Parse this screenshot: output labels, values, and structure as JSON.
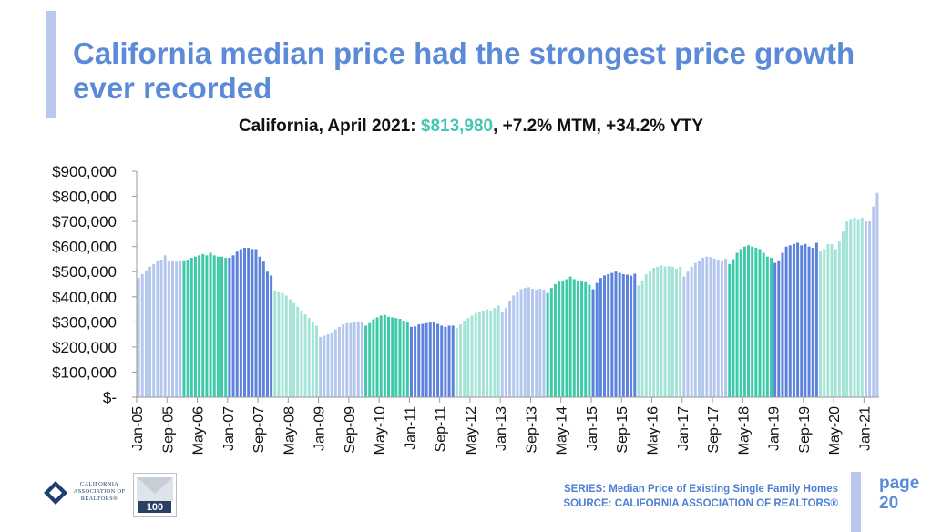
{
  "title": "California median price had the strongest price growth ever recorded",
  "subtitle": {
    "prefix": "California, April 2021: ",
    "value": "$813,980",
    "suffix": ", +7.2% MTM, +34.2% YTY"
  },
  "footer": {
    "series": "SERIES: Median Price of Existing Single Family Homes",
    "source": "SOURCE: CALIFORNIA ASSOCIATION OF REALTORS®"
  },
  "page": {
    "label": "page",
    "number": "20"
  },
  "logos": {
    "car_text": "CALIFORNIA ASSOCIATION OF REALTORS®",
    "anniversary_icon": "100-years-badge-icon"
  },
  "colors": {
    "title": "#5b8ad8",
    "highlight": "#45c6b2",
    "light_blue": "#b4c7ee",
    "teal": "#3ccaa9",
    "blue": "#5b82dd",
    "mint": "#a5e3d8",
    "accent_bar": "#b9c8ec"
  },
  "chart_data": {
    "type": "bar",
    "ylim": [
      0,
      900000
    ],
    "ytick_values": [
      0,
      100000,
      200000,
      300000,
      400000,
      500000,
      600000,
      700000,
      800000,
      900000
    ],
    "ytick_labels": [
      "$-",
      "$100,000",
      "$200,000",
      "$300,000",
      "$400,000",
      "$500,000",
      "$600,000",
      "$700,000",
      "$800,000",
      "$900,000"
    ],
    "xtick_labels": [
      "Jan-05",
      "Sep-05",
      "May-06",
      "Jan-07",
      "Sep-07",
      "May-08",
      "Jan-09",
      "Sep-09",
      "May-10",
      "Jan-11",
      "Sep-11",
      "May-12",
      "Jan-13",
      "Sep-13",
      "May-14",
      "Jan-15",
      "Sep-15",
      "May-16",
      "Jan-17",
      "Sep-17",
      "May-18",
      "Jan-19",
      "Sep-19",
      "May-20",
      "Jan-21"
    ],
    "start": "Jan-05",
    "end": "Apr-21",
    "grid": false,
    "legend": "none",
    "color_bands": [
      {
        "from": "Jan-05",
        "to": "Dec-05",
        "color": "light_blue"
      },
      {
        "from": "Jan-06",
        "to": "Dec-06",
        "color": "teal"
      },
      {
        "from": "Jan-07",
        "to": "Dec-07",
        "color": "blue"
      },
      {
        "from": "Jan-08",
        "to": "Dec-08",
        "color": "mint"
      },
      {
        "from": "Jan-09",
        "to": "Dec-09",
        "color": "light_blue"
      },
      {
        "from": "Jan-10",
        "to": "Dec-10",
        "color": "teal"
      },
      {
        "from": "Jan-11",
        "to": "Dec-11",
        "color": "blue"
      },
      {
        "from": "Jan-12",
        "to": "Dec-12",
        "color": "mint"
      },
      {
        "from": "Jan-13",
        "to": "Dec-13",
        "color": "light_blue"
      },
      {
        "from": "Jan-14",
        "to": "Dec-14",
        "color": "teal"
      },
      {
        "from": "Jan-15",
        "to": "Dec-15",
        "color": "blue"
      },
      {
        "from": "Jan-16",
        "to": "Dec-16",
        "color": "mint"
      },
      {
        "from": "Jan-17",
        "to": "Dec-17",
        "color": "light_blue"
      },
      {
        "from": "Jan-18",
        "to": "Dec-18",
        "color": "teal"
      },
      {
        "from": "Jan-19",
        "to": "Dec-19",
        "color": "blue"
      },
      {
        "from": "Jan-20",
        "to": "Dec-20",
        "color": "mint"
      },
      {
        "from": "Jan-21",
        "to": "Apr-21",
        "color": "light_blue"
      }
    ],
    "values": [
      475000,
      490000,
      505000,
      520000,
      530000,
      545000,
      548000,
      565000,
      540000,
      545000,
      540000,
      545000,
      545000,
      548000,
      555000,
      560000,
      565000,
      570000,
      565000,
      575000,
      565000,
      560000,
      560000,
      555000,
      555000,
      565000,
      580000,
      590000,
      595000,
      595000,
      590000,
      590000,
      560000,
      540000,
      500000,
      485000,
      425000,
      420000,
      415000,
      405000,
      390000,
      375000,
      360000,
      345000,
      330000,
      315000,
      300000,
      285000,
      240000,
      245000,
      250000,
      258000,
      270000,
      280000,
      290000,
      295000,
      295000,
      298000,
      302000,
      300000,
      285000,
      295000,
      310000,
      318000,
      325000,
      328000,
      320000,
      318000,
      315000,
      312000,
      305000,
      300000,
      280000,
      282000,
      290000,
      292000,
      295000,
      297000,
      298000,
      292000,
      285000,
      280000,
      285000,
      285000,
      275000,
      290000,
      305000,
      315000,
      325000,
      335000,
      340000,
      345000,
      350000,
      345000,
      355000,
      365000,
      340000,
      355000,
      385000,
      405000,
      420000,
      430000,
      435000,
      438000,
      432000,
      428000,
      432000,
      428000,
      415000,
      435000,
      450000,
      460000,
      465000,
      470000,
      480000,
      470000,
      465000,
      462000,
      458000,
      448000,
      430000,
      455000,
      475000,
      485000,
      490000,
      495000,
      500000,
      495000,
      490000,
      488000,
      484000,
      492000,
      445000,
      465000,
      490000,
      505000,
      515000,
      520000,
      525000,
      520000,
      522000,
      520000,
      512000,
      520000,
      480000,
      500000,
      520000,
      535000,
      545000,
      555000,
      560000,
      558000,
      552000,
      548000,
      545000,
      552000,
      530000,
      550000,
      575000,
      590000,
      600000,
      605000,
      600000,
      595000,
      590000,
      575000,
      560000,
      555000,
      535000,
      545000,
      575000,
      600000,
      605000,
      610000,
      615000,
      605000,
      610000,
      600000,
      595000,
      615000,
      580000,
      590000,
      610000,
      610000,
      590000,
      620000,
      660000,
      700000,
      710000,
      715000,
      710000,
      715000,
      700000,
      700000,
      760000,
      813980
    ]
  }
}
